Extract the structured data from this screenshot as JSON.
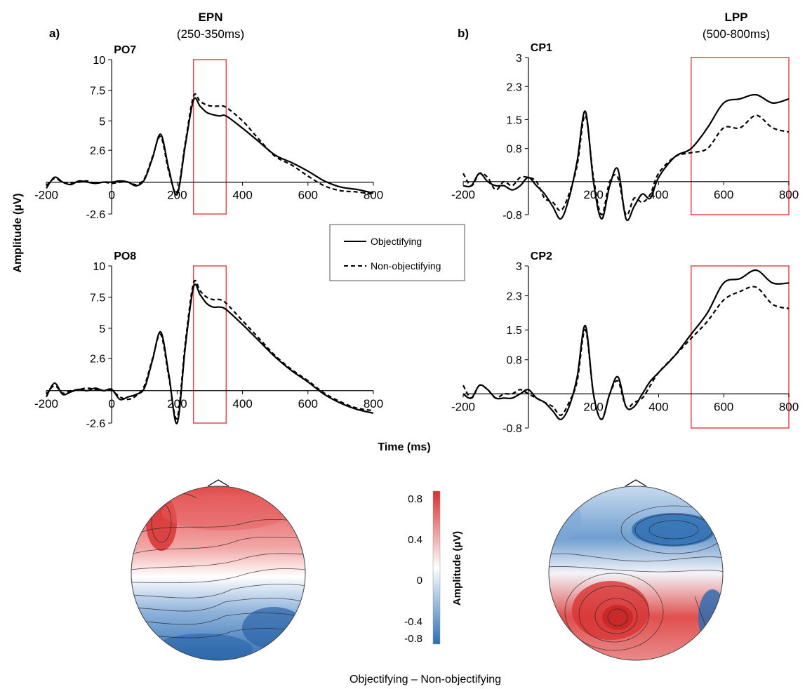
{
  "figure": {
    "xlabel": "Time (ms)",
    "ylabel": "Amplitude (µV)",
    "bottom_caption": "Objectifying – Non-objectifying"
  },
  "legend": {
    "entries": [
      "Objectifying",
      "Non-objectifying"
    ],
    "styles": [
      "solid",
      "dashed"
    ]
  },
  "panels": {
    "a": {
      "letter": "a)",
      "component": "EPN",
      "window": "(250-350ms)",
      "window_ms": [
        250,
        350
      ]
    },
    "b": {
      "letter": "b)",
      "component": "LPP",
      "window": "(500-800ms)",
      "window_ms": [
        500,
        800
      ]
    }
  },
  "colorbar": {
    "label": "Amplitude (µV)",
    "ticks": [
      "0.8",
      "0.4",
      "0",
      "-0.4",
      "-0.8"
    ],
    "range": [
      -0.8,
      0.8
    ],
    "colors": {
      "max": "#d62f2f",
      "mid": "#ffffff",
      "min": "#2a6fb5"
    }
  },
  "accent_color": "#e8474c",
  "chart_data": [
    {
      "type": "line",
      "title": "PO7",
      "xlim": [
        -200,
        800
      ],
      "ylim": [
        -2.6,
        10
      ],
      "xticks": [
        "-200",
        "0",
        "200",
        "400",
        "600",
        "800"
      ],
      "yticks": [
        "10",
        "7.5",
        "5",
        "2.6",
        "-2.6"
      ],
      "series": [
        {
          "name": "Objectifying",
          "x": [
            -200,
            -175,
            -150,
            -125,
            -100,
            -75,
            -50,
            -25,
            0,
            25,
            50,
            75,
            100,
            125,
            150,
            175,
            200,
            225,
            250,
            270,
            290,
            310,
            330,
            350,
            400,
            450,
            500,
            550,
            600,
            650,
            700,
            750,
            800
          ],
          "y": [
            -0.5,
            0.4,
            0,
            -0.2,
            0.1,
            0,
            -0.1,
            0,
            0,
            0.1,
            0,
            -0.3,
            0.2,
            2,
            3.9,
            1,
            -1,
            3,
            6.7,
            6.2,
            5.7,
            5.5,
            5.4,
            5.4,
            4.4,
            3.3,
            2.2,
            1.6,
            0.9,
            0.1,
            -0.4,
            -0.6,
            -0.9
          ]
        },
        {
          "name": "Non-objectifying",
          "x": [
            -200,
            -175,
            -150,
            -125,
            -100,
            -75,
            -50,
            -25,
            0,
            25,
            50,
            75,
            100,
            125,
            150,
            175,
            200,
            225,
            250,
            270,
            290,
            310,
            330,
            350,
            400,
            450,
            500,
            550,
            600,
            650,
            700,
            750,
            800
          ],
          "y": [
            -0.3,
            0.3,
            0,
            -0.1,
            0,
            0.1,
            -0.1,
            0,
            -0.1,
            0,
            0,
            -0.2,
            0.3,
            2.1,
            3.7,
            0.8,
            -0.8,
            3.2,
            7,
            6.6,
            6.3,
            6.2,
            6.2,
            6.1,
            5,
            3.5,
            2.1,
            1.4,
            0.5,
            -0.3,
            -0.7,
            -0.8,
            -1
          ]
        }
      ]
    },
    {
      "type": "line",
      "title": "PO8",
      "xlim": [
        -200,
        800
      ],
      "ylim": [
        -2.6,
        10
      ],
      "xticks": [
        "-200",
        "0",
        "200",
        "400",
        "600",
        "800"
      ],
      "yticks": [
        "10",
        "7.5",
        "5",
        "2.6",
        "-2.6"
      ],
      "series": [
        {
          "name": "Objectifying",
          "x": [
            -200,
            -175,
            -150,
            -125,
            -100,
            -75,
            -50,
            -25,
            0,
            25,
            50,
            75,
            100,
            125,
            150,
            175,
            200,
            225,
            250,
            270,
            290,
            310,
            330,
            350,
            400,
            450,
            500,
            550,
            600,
            650,
            700,
            750,
            800
          ],
          "y": [
            -0.5,
            0.6,
            -0.3,
            -0.1,
            0.1,
            0,
            0.2,
            0,
            0.1,
            -0.7,
            -0.5,
            -0.3,
            0.2,
            2.5,
            4.7,
            1.2,
            -2.6,
            3.5,
            8.3,
            7.7,
            7,
            6.7,
            6.7,
            6.5,
            5.3,
            4,
            2.7,
            1.6,
            0.7,
            -0.3,
            -1,
            -1.5,
            -1.8
          ]
        },
        {
          "name": "Non-objectifying",
          "x": [
            -200,
            -175,
            -150,
            -125,
            -100,
            -75,
            -50,
            -25,
            0,
            25,
            50,
            75,
            100,
            125,
            150,
            175,
            200,
            225,
            250,
            270,
            290,
            310,
            330,
            350,
            400,
            450,
            500,
            550,
            600,
            650,
            700,
            750,
            800
          ],
          "y": [
            -0.3,
            0.4,
            -0.2,
            0,
            0.1,
            0.2,
            0.1,
            0,
            0,
            -0.5,
            -0.7,
            -0.4,
            0.4,
            2.6,
            4.5,
            1,
            -2.2,
            3.8,
            8.6,
            8,
            7.5,
            7.3,
            7.3,
            7,
            5.6,
            4.2,
            2.8,
            1.7,
            0.8,
            -0.2,
            -0.9,
            -1.4,
            -1.6
          ]
        }
      ]
    },
    {
      "type": "line",
      "title": "CP1",
      "xlim": [
        -200,
        800
      ],
      "ylim": [
        -0.8,
        3
      ],
      "xticks": [
        "-200",
        "200",
        "400",
        "600",
        "800"
      ],
      "yticks": [
        "3",
        "2.3",
        "1.5",
        "0.8",
        "-0.8"
      ],
      "series": [
        {
          "name": "Objectifying",
          "x": [
            -200,
            -175,
            -150,
            -125,
            -100,
            -75,
            -50,
            -25,
            0,
            25,
            50,
            75,
            100,
            125,
            150,
            175,
            200,
            225,
            250,
            275,
            300,
            325,
            350,
            375,
            400,
            450,
            500,
            550,
            600,
            650,
            700,
            750,
            800
          ],
          "y": [
            -0.1,
            -0.1,
            0.2,
            0,
            -0.1,
            -0.1,
            -0.2,
            -0.1,
            0.1,
            -0.1,
            -0.3,
            -0.6,
            -0.9,
            -0.4,
            0.5,
            1.7,
            0,
            -0.9,
            -0.1,
            0.3,
            -0.9,
            -0.6,
            -0.3,
            -0.4,
            0.1,
            0.6,
            0.8,
            1.3,
            1.9,
            2,
            2.1,
            1.9,
            2
          ]
        },
        {
          "name": "Non-objectifying",
          "x": [
            -200,
            -175,
            -150,
            -125,
            -100,
            -75,
            -50,
            -25,
            0,
            25,
            50,
            75,
            100,
            125,
            150,
            175,
            200,
            225,
            250,
            275,
            300,
            325,
            350,
            375,
            400,
            450,
            500,
            550,
            600,
            650,
            700,
            750,
            800
          ],
          "y": [
            0.2,
            -0.1,
            0.2,
            0.1,
            -0.2,
            0,
            -0.1,
            0.1,
            0.1,
            0,
            -0.4,
            -0.5,
            -0.7,
            -0.3,
            0.4,
            1.6,
            0.1,
            -0.8,
            0,
            0.1,
            -0.8,
            -0.4,
            -0.5,
            -0.3,
            0.2,
            0.6,
            0.7,
            0.8,
            1.3,
            1.3,
            1.6,
            1.3,
            1.2
          ]
        }
      ]
    },
    {
      "type": "line",
      "title": "CP2",
      "xlim": [
        -200,
        800
      ],
      "ylim": [
        -0.8,
        3
      ],
      "xticks": [
        "-200",
        "200",
        "400",
        "600",
        "800"
      ],
      "yticks": [
        "3",
        "2.3",
        "1.5",
        "0.8",
        "-0.8"
      ],
      "series": [
        {
          "name": "Objectifying",
          "x": [
            -200,
            -175,
            -150,
            -125,
            -100,
            -75,
            -50,
            -25,
            0,
            25,
            50,
            75,
            100,
            125,
            150,
            175,
            200,
            225,
            250,
            275,
            300,
            325,
            350,
            375,
            400,
            450,
            500,
            550,
            600,
            650,
            700,
            750,
            800
          ],
          "y": [
            0,
            -0.1,
            0.2,
            0.1,
            -0.1,
            -0.1,
            -0.1,
            0,
            0.1,
            -0.1,
            -0.2,
            -0.4,
            -0.6,
            -0.3,
            0.4,
            1.6,
            0,
            -0.6,
            0,
            0.4,
            -0.3,
            -0.3,
            0,
            0.3,
            0.5,
            0.9,
            1.4,
            1.9,
            2.6,
            2.7,
            2.9,
            2.6,
            2.6
          ]
        },
        {
          "name": "Non-objectifying",
          "x": [
            -200,
            -175,
            -150,
            -125,
            -100,
            -75,
            -50,
            -25,
            0,
            25,
            50,
            75,
            100,
            125,
            150,
            175,
            200,
            225,
            250,
            275,
            300,
            325,
            350,
            375,
            400,
            450,
            500,
            550,
            600,
            650,
            700,
            750,
            800
          ],
          "y": [
            0.2,
            -0.1,
            0.2,
            0.1,
            -0.1,
            0,
            0,
            0.1,
            0,
            -0.1,
            -0.2,
            -0.3,
            -0.5,
            -0.2,
            0.3,
            1.5,
            0,
            -0.6,
            0,
            0.3,
            -0.3,
            -0.2,
            -0.1,
            0.2,
            0.5,
            0.9,
            1.3,
            1.7,
            2.2,
            2.4,
            2.5,
            2.1,
            2
          ]
        }
      ]
    }
  ]
}
